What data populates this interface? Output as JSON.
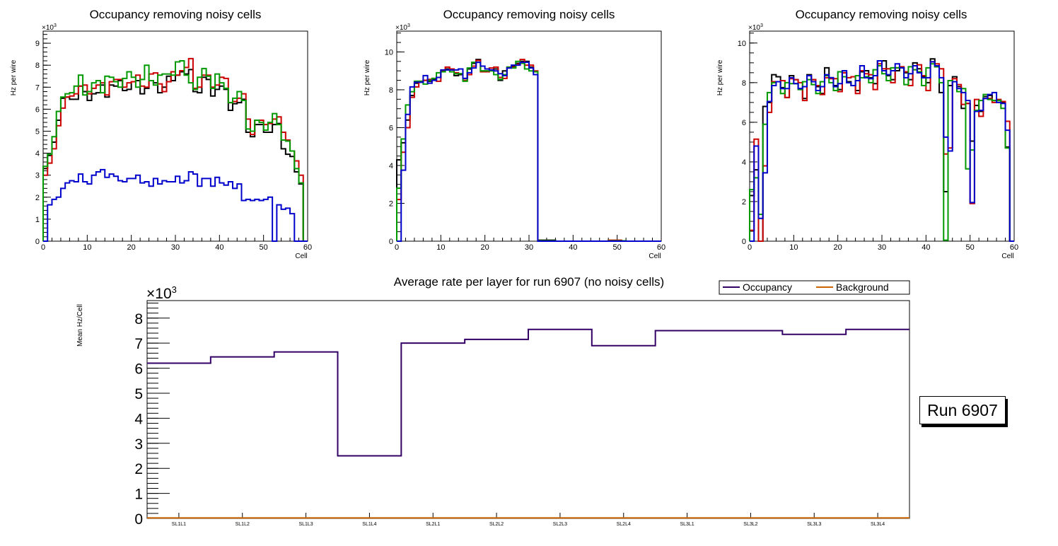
{
  "chart_data": [
    {
      "type": "line",
      "style": "step-histogram",
      "title": "Occupancy removing noisy cells",
      "xlabel": "Cell",
      "ylabel": "Hz per wire",
      "y_multiplier": "×10^3",
      "xlim": [
        0,
        60
      ],
      "ylim": [
        0,
        9.55
      ],
      "x_ticks": [
        "0",
        "10",
        "20",
        "30",
        "40",
        "50",
        "60"
      ],
      "y_ticks": [
        "0",
        "1",
        "2",
        "3",
        "4",
        "5",
        "6",
        "7",
        "8",
        "9"
      ],
      "series": [
        {
          "name": "black",
          "color": "#000000",
          "values": [
            3.3,
            3.9,
            4.5,
            5.5,
            6.5,
            6.55,
            6.45,
            6.45,
            7.05,
            6.8,
            6.4,
            6.7,
            6.75,
            7.1,
            6.55,
            7.1,
            7.05,
            7.3,
            6.85,
            6.9,
            7.25,
            7.3,
            6.7,
            6.95,
            7.3,
            7.2,
            6.75,
            7.0,
            7.5,
            7.3,
            7.55,
            7.7,
            7.6,
            7.8,
            6.8,
            6.75,
            7.45,
            7.35,
            6.6,
            6.9,
            7.05,
            6.9,
            5.95,
            6.25,
            6.3,
            6.45,
            4.95,
            4.75,
            5.3,
            5.3,
            4.95,
            4.95,
            5.3,
            5.35,
            4.2,
            3.95,
            3.85,
            3.15,
            2.6,
            0
          ]
        },
        {
          "name": "red",
          "color": "#cc0000",
          "values": [
            3.0,
            3.55,
            4.2,
            5.25,
            6.05,
            6.55,
            6.6,
            6.7,
            7.05,
            7.1,
            6.7,
            6.95,
            7.1,
            7.2,
            6.65,
            7.25,
            7.35,
            7.35,
            7.0,
            7.2,
            7.25,
            7.55,
            7.05,
            7.0,
            7.6,
            7.65,
            7.15,
            6.8,
            7.25,
            7.7,
            7.55,
            7.75,
            7.9,
            8.3,
            6.95,
            7.0,
            7.55,
            7.55,
            7.0,
            7.1,
            7.45,
            7.4,
            6.3,
            6.35,
            6.5,
            6.7,
            5.55,
            4.85,
            5.5,
            5.5,
            5.3,
            5.35,
            5.55,
            5.65,
            4.95,
            4.6,
            4.1,
            3.65,
            3.0,
            0
          ]
        },
        {
          "name": "green",
          "color": "#009900",
          "values": [
            3.4,
            3.95,
            4.75,
            5.9,
            6.55,
            6.7,
            6.75,
            7.05,
            7.55,
            6.65,
            6.8,
            7.2,
            7.3,
            6.75,
            7.5,
            7.45,
            7.25,
            7.0,
            7.4,
            7.7,
            7.45,
            7.0,
            7.35,
            8.0,
            7.3,
            7.1,
            7.55,
            7.6,
            7.6,
            7.55,
            8.15,
            8.2,
            7.55,
            7.2,
            6.9,
            7.45,
            7.85,
            7.5,
            6.95,
            7.6,
            7.2,
            6.95,
            6.3,
            6.5,
            6.8,
            6.4,
            5.1,
            5.0,
            5.5,
            5.4,
            5.05,
            5.4,
            5.8,
            5.3,
            4.6,
            4.55,
            4.1,
            3.3,
            2.65,
            0
          ]
        },
        {
          "name": "blue",
          "color": "#0000cc",
          "values": [
            0,
            1.65,
            1.9,
            2.0,
            2.4,
            2.65,
            2.75,
            2.7,
            3.05,
            2.7,
            2.6,
            3.0,
            3.15,
            3.25,
            2.9,
            3.05,
            2.95,
            2.75,
            2.7,
            2.85,
            2.85,
            3.0,
            2.65,
            2.7,
            2.5,
            2.85,
            2.6,
            2.75,
            2.7,
            2.7,
            2.95,
            2.65,
            2.75,
            3.15,
            3.05,
            2.5,
            2.85,
            2.85,
            2.5,
            2.9,
            2.65,
            2.55,
            2.7,
            2.4,
            2.6,
            1.85,
            1.9,
            1.85,
            1.9,
            1.85,
            1.9,
            2.0,
            0,
            1.65,
            1.45,
            1.5,
            1.25,
            0,
            0,
            0
          ]
        }
      ]
    },
    {
      "type": "line",
      "style": "step-histogram",
      "title": "Occupancy removing noisy cells",
      "xlabel": "Cell",
      "ylabel": "Hz per wire",
      "y_multiplier": "×10^3",
      "xlim": [
        0,
        60
      ],
      "ylim": [
        0,
        11.1
      ],
      "x_ticks": [
        "0",
        "10",
        "20",
        "30",
        "40",
        "50",
        "60"
      ],
      "y_ticks": [
        "0",
        "2",
        "4",
        "6",
        "8",
        "10"
      ],
      "series": [
        {
          "name": "black",
          "color": "#000000",
          "values": [
            4.3,
            5.2,
            6.4,
            7.7,
            8.35,
            8.4,
            8.5,
            8.45,
            8.55,
            8.65,
            8.95,
            9.1,
            9.05,
            8.75,
            8.8,
            8.6,
            9.1,
            9.4,
            9.6,
            9.0,
            9.0,
            9.05,
            9.1,
            8.5,
            9.0,
            9.15,
            9.25,
            9.4,
            9.5,
            9.5,
            9.2,
            8.95,
            0.05,
            0.05,
            0.05,
            0.05,
            0,
            0,
            0,
            0,
            0,
            0,
            0,
            0,
            0,
            0,
            0,
            0,
            0.02,
            0.02,
            0.02,
            0,
            0,
            0,
            0,
            0,
            0,
            0,
            0,
            0
          ]
        },
        {
          "name": "red",
          "color": "#cc0000",
          "values": [
            2.2,
            4.7,
            6.0,
            7.6,
            8.15,
            8.45,
            8.5,
            8.55,
            8.6,
            8.45,
            9.0,
            9.2,
            9.1,
            8.9,
            8.85,
            8.5,
            8.8,
            9.25,
            9.55,
            8.95,
            8.95,
            9.15,
            9.2,
            8.65,
            8.6,
            9.2,
            9.2,
            9.35,
            9.6,
            9.3,
            9.3,
            9.0,
            0,
            0,
            0,
            0,
            0,
            0,
            0,
            0,
            0,
            0,
            0,
            0,
            0,
            0,
            0,
            0,
            0.05,
            0.05,
            0.05,
            0,
            0,
            0,
            0,
            0,
            0,
            0,
            0,
            0
          ]
        },
        {
          "name": "green",
          "color": "#009900",
          "values": [
            2.8,
            5.4,
            7.2,
            7.9,
            8.45,
            8.45,
            8.3,
            8.5,
            8.6,
            8.9,
            8.95,
            9.05,
            8.95,
            8.85,
            8.85,
            8.45,
            9.15,
            9.45,
            9.45,
            9.0,
            9.0,
            9.0,
            8.8,
            8.55,
            8.8,
            9.2,
            9.15,
            9.5,
            9.4,
            9.1,
            9.0,
            8.95,
            0.02,
            0.02,
            0.02,
            0.02,
            0,
            0,
            0,
            0,
            0,
            0,
            0,
            0,
            0,
            0,
            0,
            0,
            0.02,
            0.02,
            0.02,
            0.02,
            0,
            0,
            0,
            0,
            0,
            0,
            0,
            0
          ]
        },
        {
          "name": "blue",
          "color": "#0000cc",
          "values": [
            0,
            3.75,
            6.7,
            8.15,
            8.4,
            8.4,
            8.75,
            8.35,
            8.5,
            8.65,
            9.05,
            9.05,
            9.05,
            9.05,
            9.1,
            8.6,
            8.9,
            9.15,
            9.45,
            9.25,
            9.1,
            9.05,
            9.0,
            8.85,
            8.75,
            9.15,
            9.3,
            9.3,
            9.45,
            9.45,
            9.15,
            8.8,
            0,
            0,
            0,
            0,
            0,
            0,
            0,
            0,
            0,
            0,
            0,
            0,
            0,
            0,
            0,
            0,
            0,
            0,
            0,
            0,
            0,
            0,
            0,
            0,
            0,
            0,
            0,
            0
          ]
        }
      ]
    },
    {
      "type": "line",
      "style": "step-histogram",
      "title": "Occupancy removing noisy cells",
      "xlabel": "Cell",
      "ylabel": "Hz per wire",
      "y_multiplier": "×10^3",
      "xlim": [
        0,
        60
      ],
      "ylim": [
        0,
        10.6
      ],
      "x_ticks": [
        "0",
        "10",
        "20",
        "30",
        "40",
        "50",
        "60"
      ],
      "y_ticks": [
        "0",
        "2",
        "4",
        "6",
        "8",
        "10"
      ],
      "series": [
        {
          "name": "black",
          "color": "#000000",
          "values": [
            2.3,
            3.6,
            0,
            6.8,
            7.0,
            8.4,
            8.3,
            7.75,
            7.25,
            8.35,
            8.15,
            7.7,
            7.2,
            8.4,
            8.15,
            7.8,
            7.45,
            8.75,
            8.25,
            7.85,
            7.65,
            8.5,
            8.05,
            7.85,
            7.6,
            8.55,
            8.6,
            8.25,
            7.95,
            9.1,
            9.1,
            8.35,
            8.15,
            8.6,
            8.75,
            8.5,
            8.15,
            9.0,
            8.7,
            8.3,
            8.0,
            9.2,
            8.8,
            7.5,
            2.5,
            7.85,
            8.3,
            7.8,
            6.7,
            6.95,
            5.05,
            6.85,
            6.55,
            7.3,
            7.35,
            7.1,
            7.1,
            7.0,
            4.75,
            0
          ]
        },
        {
          "name": "red",
          "color": "#cc0000",
          "values": [
            0.55,
            5.15,
            0,
            3.8,
            6.5,
            8.05,
            8.05,
            8.1,
            7.25,
            8.2,
            8.15,
            8.0,
            7.1,
            8.35,
            8.15,
            7.85,
            7.4,
            8.25,
            8.2,
            8.2,
            7.55,
            8.5,
            8.25,
            8.3,
            7.45,
            8.6,
            8.45,
            8.4,
            7.65,
            8.95,
            8.7,
            8.7,
            8.0,
            8.75,
            8.8,
            8.55,
            7.85,
            8.65,
            8.9,
            8.35,
            7.6,
            9.05,
            8.95,
            8.7,
            4.4,
            4.7,
            8.2,
            7.9,
            6.9,
            6.95,
            1.9,
            7.15,
            6.3,
            7.2,
            7.2,
            7.0,
            7.15,
            7.05,
            6.05,
            0
          ]
        },
        {
          "name": "green",
          "color": "#009900",
          "values": [
            2.6,
            3.2,
            1.35,
            5.9,
            7.5,
            8.0,
            8.05,
            7.45,
            8.0,
            7.95,
            7.95,
            7.65,
            8.05,
            8.15,
            7.9,
            7.45,
            8.05,
            8.35,
            8.0,
            7.6,
            8.55,
            8.3,
            8.0,
            7.85,
            8.35,
            8.25,
            8.3,
            8.0,
            8.65,
            8.85,
            8.45,
            8.1,
            8.75,
            8.75,
            8.75,
            7.9,
            8.8,
            8.65,
            8.55,
            7.85,
            8.75,
            8.95,
            8.8,
            8.0,
            0.05,
            8.1,
            8.05,
            7.55,
            7.7,
            3.65,
            4.6,
            6.6,
            7.1,
            7.4,
            7.15,
            7.1,
            7.1,
            6.7,
            4.7,
            0
          ]
        },
        {
          "name": "blue",
          "color": "#0000cc",
          "values": [
            0,
            4.8,
            1.15,
            3.45,
            7.05,
            7.85,
            8.05,
            7.7,
            7.7,
            8.25,
            7.95,
            7.7,
            7.8,
            8.35,
            8.05,
            7.6,
            7.8,
            8.4,
            8.25,
            7.8,
            7.95,
            8.6,
            8.0,
            7.85,
            8.1,
            8.85,
            8.25,
            8.2,
            8.35,
            9.1,
            8.6,
            8.4,
            8.6,
            8.95,
            8.75,
            8.25,
            8.45,
            8.85,
            8.5,
            8.25,
            8.25,
            9.05,
            8.85,
            8.25,
            5.25,
            4.55,
            8.05,
            7.7,
            7.5,
            7.1,
            1.95,
            6.55,
            6.6,
            7.2,
            7.4,
            7.5,
            7.0,
            6.95,
            5.6,
            0
          ]
        }
      ]
    },
    {
      "type": "line",
      "style": "step-histogram",
      "title": "Average rate per layer for run 6907 (no noisy cells)",
      "xlabel": "",
      "ylabel": "Mean Hz/Cell",
      "y_multiplier": "×10^3",
      "ylim": [
        0,
        8.7
      ],
      "categories": [
        "SL1L1",
        "SL1L2",
        "SL1L3",
        "SL1L4",
        "SL2L1",
        "SL2L2",
        "SL2L3",
        "SL2L4",
        "SL3L1",
        "SL3L2",
        "SL3L3",
        "SL3L4"
      ],
      "y_ticks": [
        "0",
        "1",
        "2",
        "3",
        "4",
        "5",
        "6",
        "7",
        "8"
      ],
      "legend": {
        "position": "top-right",
        "entries": [
          {
            "label": "Occupancy",
            "color": "#330066"
          },
          {
            "label": "Background",
            "color": "#cc6600"
          }
        ]
      },
      "series": [
        {
          "name": "Occupancy",
          "color": "#330066",
          "values": [
            6.2,
            6.45,
            6.65,
            2.5,
            7.0,
            7.15,
            7.55,
            6.9,
            7.5,
            7.5,
            7.35,
            7.55
          ]
        },
        {
          "name": "Background",
          "color": "#cc6600",
          "values": [
            0.02,
            0.02,
            0.02,
            0.02,
            0.02,
            0.02,
            0.02,
            0.02,
            0.02,
            0.02,
            0.02,
            0.02
          ]
        }
      ]
    }
  ],
  "annotation": {
    "run_label": "Run 6907"
  }
}
